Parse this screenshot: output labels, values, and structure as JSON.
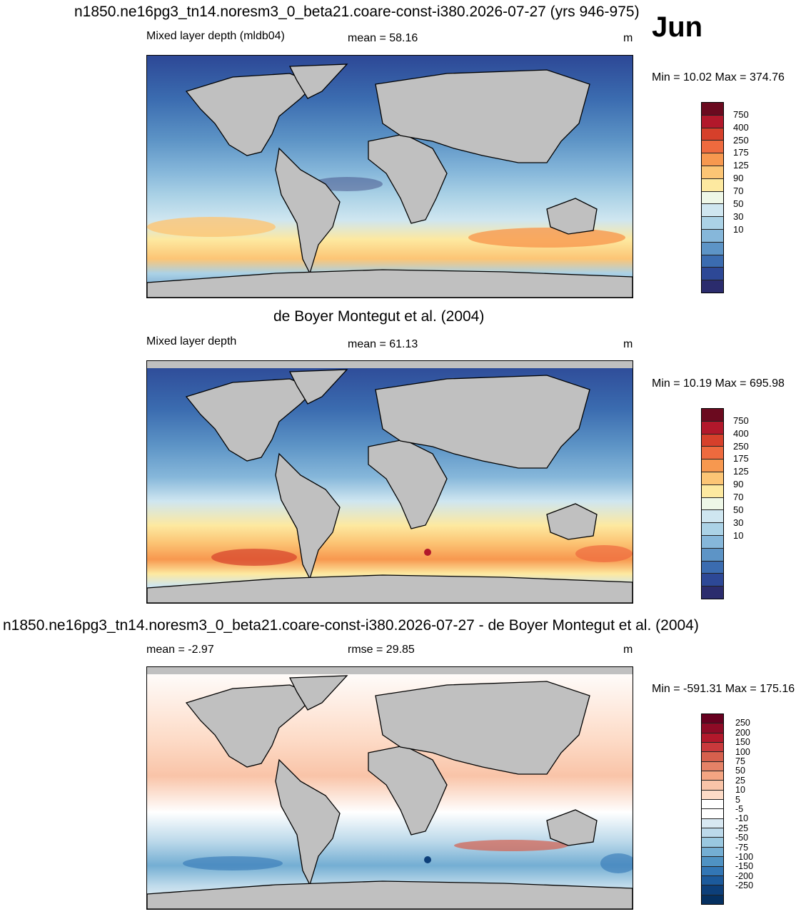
{
  "header": {
    "main_title": "n1850.ne16pg3_tn14.noresm3_0_beta21.coare-const-i380.2026-07-27 (yrs 946-975)",
    "month": "Jun"
  },
  "panel1": {
    "variable": "Mixed layer depth (mldb04)",
    "mean": "mean =  58.16",
    "units": "m",
    "minmax": "Min =  10.02 Max = 374.76",
    "colorbar": {
      "labels": [
        "750",
        "400",
        "250",
        "175",
        "125",
        "90",
        "70",
        "50",
        "30",
        "10"
      ],
      "colors": [
        "#6b0a1f",
        "#b2182b",
        "#d6402b",
        "#ee6a3e",
        "#f7984f",
        "#fcc575",
        "#fde9a0",
        "#eef7e7",
        "#cfe6f0",
        "#abd2e6",
        "#86b7da",
        "#5d94c6",
        "#3b6cb0",
        "#2d4896",
        "#2b2c6d"
      ]
    }
  },
  "panel2": {
    "title": "de Boyer Montegut et al. (2004)",
    "variable": "Mixed layer depth",
    "mean": "mean =  61.13",
    "units": "m",
    "minmax": "Min =  10.19 Max = 695.98",
    "colorbar": {
      "labels": [
        "750",
        "400",
        "250",
        "175",
        "125",
        "90",
        "70",
        "50",
        "30",
        "10"
      ],
      "colors": [
        "#6b0a1f",
        "#b2182b",
        "#d6402b",
        "#ee6a3e",
        "#f7984f",
        "#fcc575",
        "#fde9a0",
        "#eef7e7",
        "#cfe6f0",
        "#abd2e6",
        "#86b7da",
        "#5d94c6",
        "#3b6cb0",
        "#2d4896",
        "#2b2c6d"
      ]
    }
  },
  "panel3": {
    "title": "n1850.ne16pg3_tn14.noresm3_0_beta21.coare-const-i380.2026-07-27 - de Boyer Montegut et al. (2004)",
    "mean": "mean =  -2.97",
    "rmse": "rmse =  29.85",
    "units": "m",
    "minmax": "Min = -591.31 Max = 175.16",
    "colorbar": {
      "labels": [
        "250",
        "200",
        "150",
        "100",
        "75",
        "50",
        "25",
        "10",
        "5",
        "-5",
        "-10",
        "-25",
        "-50",
        "-75",
        "-100",
        "-150",
        "-200",
        "-250"
      ],
      "colors": [
        "#67001f",
        "#8e0b26",
        "#b2182b",
        "#c9393c",
        "#d6604d",
        "#e58267",
        "#f4a582",
        "#f9c4a8",
        "#fddbc7",
        "#ffffff",
        "#ffffff",
        "#d8e8f2",
        "#bcd9ea",
        "#9ac8e0",
        "#74aed3",
        "#4f92c3",
        "#3276b5",
        "#1c5a9c",
        "#0d3f7a",
        "#053061"
      ]
    }
  },
  "colors": {
    "land": "#c0c0c0",
    "coast": "#000000"
  }
}
